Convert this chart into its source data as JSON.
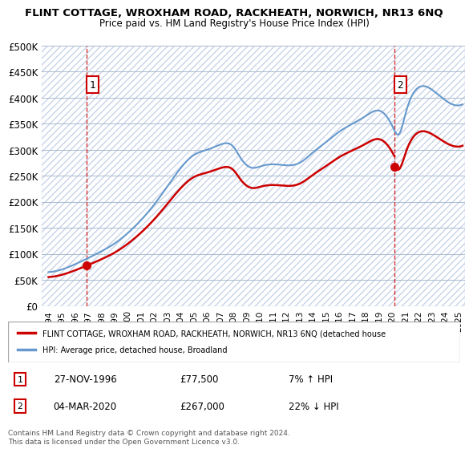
{
  "title_line1": "FLINT COTTAGE, WROXHAM ROAD, RACKHEATH, NORWICH, NR13 6NQ",
  "title_line2": "Price paid vs. HM Land Registry's House Price Index (HPI)",
  "xlabel": "",
  "ylabel": "",
  "ylim": [
    0,
    500000
  ],
  "yticks": [
    0,
    50000,
    100000,
    150000,
    200000,
    250000,
    300000,
    350000,
    400000,
    450000,
    500000
  ],
  "ytick_labels": [
    "£0",
    "£50K",
    "£100K",
    "£150K",
    "£200K",
    "£250K",
    "£300K",
    "£350K",
    "£400K",
    "£450K",
    "£500K"
  ],
  "hpi_color": "#6699cc",
  "price_color": "#cc0000",
  "marker_color": "#cc0000",
  "vline_color": "#cc0000",
  "annotation_box_color": "#cc0000",
  "bg_hatch_color": "#d0d8e8",
  "sale1_date_num": 1996.9,
  "sale1_price": 77500,
  "sale2_date_num": 2020.17,
  "sale2_price": 267000,
  "legend_label_red": "FLINT COTTAGE, WROXHAM ROAD, RACKHEATH, NORWICH, NR13 6NQ (detached house",
  "legend_label_blue": "HPI: Average price, detached house, Broadland",
  "table_row1_num": "1",
  "table_row1_date": "27-NOV-1996",
  "table_row1_price": "£77,500",
  "table_row1_hpi": "7% ↑ HPI",
  "table_row2_num": "2",
  "table_row2_date": "04-MAR-2020",
  "table_row2_price": "£267,000",
  "table_row2_hpi": "22% ↓ HPI",
  "footer": "Contains HM Land Registry data © Crown copyright and database right 2024.\nThis data is licensed under the Open Government Licence v3.0.",
  "xlim_start": 1993.5,
  "xlim_end": 2025.5,
  "xticks": [
    1994,
    1995,
    1996,
    1997,
    1998,
    1999,
    2000,
    2001,
    2002,
    2003,
    2004,
    2005,
    2006,
    2007,
    2008,
    2009,
    2010,
    2011,
    2012,
    2013,
    2014,
    2015,
    2016,
    2017,
    2018,
    2019,
    2020,
    2021,
    2022,
    2023,
    2024,
    2025
  ]
}
